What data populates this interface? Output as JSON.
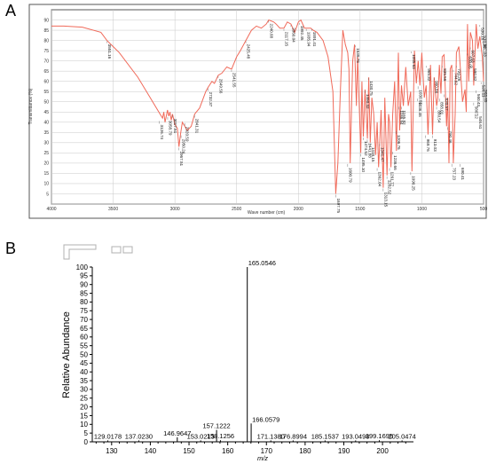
{
  "panels": {
    "a": "A",
    "b": "B"
  },
  "chart_data": [
    {
      "type": "line",
      "panel": "A",
      "xlabel": "Wave number (cm)",
      "ylabel": "Transmittance (%)",
      "xlim": [
        4000,
        500
      ],
      "ylim": [
        0,
        95
      ],
      "x_ticks": [
        4000,
        3500,
        3000,
        2500,
        2000,
        1500,
        1000,
        500
      ],
      "y_ticks": [
        0,
        5,
        10,
        15,
        20,
        25,
        30,
        35,
        40,
        45,
        50,
        55,
        60,
        65,
        70,
        75,
        80,
        85,
        90
      ],
      "color": "#f06a5a",
      "series": [
        {
          "x": [
            4000,
            3900,
            3750,
            3600,
            3551,
            3450,
            3300,
            3200,
            3120,
            3100,
            3090,
            3080,
            3060,
            3050,
            3040,
            3030,
            3020,
            3000,
            2980,
            2967,
            2955,
            2940,
            2900,
            2868,
            2840,
            2800,
            2750,
            2732,
            2700,
            2680,
            2649,
            2620,
            2580,
            2541,
            2500,
            2470,
            2425,
            2380,
            2340,
            2300,
            2260,
            2240,
            2200,
            2180,
            2150,
            2117,
            2090,
            2060,
            2030,
            2000,
            1980,
            1950,
            1900,
            1880,
            1850,
            1800,
            1760,
            1720,
            1697,
            1680,
            1660,
            1640,
            1620,
            1600,
            1590,
            1580,
            1560,
            1545,
            1530,
            1520,
            1495,
            1485,
            1474,
            1460,
            1441,
            1430,
            1418,
            1405,
            1390,
            1375,
            1362,
            1350,
            1341,
            1330,
            1313,
            1300,
            1282,
            1270,
            1261,
            1250,
            1236,
            1220,
            1206,
            1190,
            1180,
            1165,
            1150,
            1130,
            1110,
            1090,
            1080,
            1060,
            1045,
            1030,
            1015,
            1000,
            980,
            965,
            950,
            930,
            913,
            900,
            880,
            870,
            858,
            845,
            835,
            820,
            800,
            790,
            780,
            770,
            757,
            745,
            730,
            720,
            700,
            690,
            670,
            650,
            640,
            630,
            620,
            607,
            590,
            580,
            560,
            546,
            530,
            510,
            500
          ],
          "y": [
            87,
            87,
            86.5,
            84,
            80,
            74,
            62,
            52,
            44,
            42,
            45,
            40,
            46,
            43,
            45,
            41,
            44,
            39,
            37,
            28,
            34,
            40,
            36,
            38,
            44,
            47,
            55,
            57,
            60,
            59,
            63,
            64,
            67,
            66,
            72,
            75,
            80,
            85,
            87,
            86,
            88,
            90,
            89,
            88,
            86,
            86,
            89,
            88,
            84,
            89,
            90,
            86,
            86,
            85,
            84,
            80,
            72,
            55,
            5,
            20,
            55,
            85,
            78,
            74,
            66,
            20,
            70,
            78,
            48,
            72,
            25,
            60,
            33,
            56,
            32,
            62,
            30,
            52,
            44,
            24,
            40,
            18,
            30,
            46,
            8,
            52,
            14,
            44,
            40,
            18,
            44,
            60,
            26,
            74,
            36,
            58,
            48,
            67,
            48,
            55,
            16,
            75,
            59,
            70,
            58,
            74,
            52,
            58,
            34,
            68,
            34,
            62,
            48,
            52,
            68,
            54,
            72,
            73,
            38,
            52,
            20,
            66,
            68,
            20,
            44,
            74,
            77,
            68,
            50,
            56,
            45,
            88,
            60,
            84,
            80,
            58,
            88,
            76,
            82,
            72,
            60
          ]
        }
      ],
      "peak_labels": [
        {
          "x": 3551.16,
          "y": 80,
          "label": "3551.16"
        },
        {
          "x": 3126.74,
          "y": 41,
          "label": "3126.74"
        },
        {
          "x": 3058.79,
          "y": 43,
          "label": "3058.79"
        },
        {
          "x": 3017.51,
          "y": 44,
          "label": "3017.51"
        },
        {
          "x": 2967.51,
          "y": 28,
          "label": "2967.51"
        },
        {
          "x": 2950.24,
          "y": 34,
          "label": "2950.24"
        },
        {
          "x": 2920.59,
          "y": 40,
          "label": "2920.59"
        },
        {
          "x": 2841.31,
          "y": 44,
          "label": "2841.31"
        },
        {
          "x": 2732.37,
          "y": 57,
          "label": "2732.37"
        },
        {
          "x": 2649.56,
          "y": 63,
          "label": "2649.56"
        },
        {
          "x": 2541.55,
          "y": 66,
          "label": "2541.55"
        },
        {
          "x": 2425.48,
          "y": 80,
          "label": "2425.48"
        },
        {
          "x": 2240.68,
          "y": 90,
          "label": "2240.68"
        },
        {
          "x": 2117.15,
          "y": 86,
          "label": "2117.15"
        },
        {
          "x": 2060.04,
          "y": 88,
          "label": "2060.04"
        },
        {
          "x": 1992.45,
          "y": 89,
          "label": "1992.45"
        },
        {
          "x": 1935.94,
          "y": 86,
          "label": "1935.94"
        },
        {
          "x": 1891.41,
          "y": 86,
          "label": "1891.41"
        },
        {
          "x": 1697.75,
          "y": 5,
          "label": "1697.75"
        },
        {
          "x": 1600.79,
          "y": 20,
          "label": "1600.79"
        },
        {
          "x": 1538.76,
          "y": 78,
          "label": "1538.76"
        },
        {
          "x": 1495.1,
          "y": 25,
          "label": "1495.10"
        },
        {
          "x": 1474.52,
          "y": 33,
          "label": "1474.52"
        },
        {
          "x": 1460.32,
          "y": 56,
          "label": "1460.32"
        },
        {
          "x": 1441.88,
          "y": 32,
          "label": "1441.88"
        },
        {
          "x": 1430.75,
          "y": 62,
          "label": "1430.75"
        },
        {
          "x": 1418.15,
          "y": 30,
          "label": "1418.15"
        },
        {
          "x": 1362.04,
          "y": 18,
          "label": "1362.04"
        },
        {
          "x": 1341.47,
          "y": 30,
          "label": "1341.47"
        },
        {
          "x": 1313.15,
          "y": 8,
          "label": "1313.15"
        },
        {
          "x": 1282.52,
          "y": 14,
          "label": "1282.52"
        },
        {
          "x": 1261.77,
          "y": 18,
          "label": "1261.77"
        },
        {
          "x": 1236.66,
          "y": 26,
          "label": "1236.66"
        },
        {
          "x": 1206.76,
          "y": 36,
          "label": "1206.76"
        },
        {
          "x": 1186.54,
          "y": 48,
          "label": "1186.54"
        },
        {
          "x": 1165.82,
          "y": 48,
          "label": "1165.82"
        },
        {
          "x": 1090.25,
          "y": 16,
          "label": "1090.25"
        },
        {
          "x": 1085.63,
          "y": 75,
          "label": "1085.63"
        },
        {
          "x": 1036.46,
          "y": 52,
          "label": "1036.46"
        },
        {
          "x": 1030.66,
          "y": 58,
          "label": "1030.66"
        },
        {
          "x": 969.76,
          "y": 34,
          "label": "969.76"
        },
        {
          "x": 965.32,
          "y": 68,
          "label": "965.32"
        },
        {
          "x": 913.03,
          "y": 34,
          "label": "913.03"
        },
        {
          "x": 900.86,
          "y": 62,
          "label": "900.86"
        },
        {
          "x": 880.54,
          "y": 48,
          "label": "880.54"
        },
        {
          "x": 858.01,
          "y": 52,
          "label": "858.01"
        },
        {
          "x": 835.56,
          "y": 68,
          "label": "835.56"
        },
        {
          "x": 820.57,
          "y": 54,
          "label": "820.57"
        },
        {
          "x": 790.46,
          "y": 38,
          "label": "790.46"
        },
        {
          "x": 757.23,
          "y": 20,
          "label": "757.23"
        },
        {
          "x": 744.62,
          "y": 66,
          "label": "744.62"
        },
        {
          "x": 720.26,
          "y": 68,
          "label": "720.26"
        },
        {
          "x": 690.41,
          "y": 20,
          "label": "690.41"
        },
        {
          "x": 630.05,
          "y": 74,
          "label": "630.05"
        },
        {
          "x": 607.63,
          "y": 77,
          "label": "607.63"
        },
        {
          "x": 590.82,
          "y": 68,
          "label": "590.82"
        },
        {
          "x": 580.12,
          "y": 50,
          "label": "580.12"
        },
        {
          "x": 560.43,
          "y": 56,
          "label": "560.43"
        },
        {
          "x": 546.61,
          "y": 45,
          "label": "546.61"
        },
        {
          "x": 530.16,
          "y": 88,
          "label": "530.16"
        },
        {
          "x": 520.11,
          "y": 60,
          "label": "520.11"
        },
        {
          "x": 510.34,
          "y": 84,
          "label": "510.34"
        },
        {
          "x": 507.03,
          "y": 80,
          "label": "507.03"
        },
        {
          "x": 503.65,
          "y": 58,
          "label": "503.65"
        }
      ]
    },
    {
      "type": "bar",
      "panel": "B",
      "xlabel": "m/z",
      "ylabel": "Relative Abundance",
      "xlim": [
        125,
        208
      ],
      "ylim": [
        0,
        100
      ],
      "x_ticks": [
        130,
        140,
        150,
        160,
        170,
        180,
        190,
        200
      ],
      "y_ticks": [
        0,
        5,
        10,
        15,
        20,
        25,
        30,
        35,
        40,
        45,
        50,
        55,
        60,
        65,
        70,
        75,
        80,
        85,
        90,
        95,
        100
      ],
      "peaks": [
        {
          "x": 129.0178,
          "y": 0.8,
          "label": "129.0178"
        },
        {
          "x": 137.023,
          "y": 0.8,
          "label": "137.0230"
        },
        {
          "x": 146.9647,
          "y": 2.6,
          "label": "146.9647"
        },
        {
          "x": 153.0213,
          "y": 0.8,
          "label": "153.0213"
        },
        {
          "x": 157.1222,
          "y": 6.8,
          "label": "157.1222"
        },
        {
          "x": 158.1256,
          "y": 0.9,
          "label": "158.1256"
        },
        {
          "x": 165.0546,
          "y": 100,
          "label": "165.0546"
        },
        {
          "x": 166.0579,
          "y": 10.5,
          "label": "166.0579"
        },
        {
          "x": 171.138,
          "y": 0.8,
          "label": "171.1380"
        },
        {
          "x": 176.8994,
          "y": 0.8,
          "label": "176.8994"
        },
        {
          "x": 185.1537,
          "y": 0.8,
          "label": "185.1537"
        },
        {
          "x": 193.0498,
          "y": 0.8,
          "label": "193.0498"
        },
        {
          "x": 199.1695,
          "y": 0.9,
          "label": "199.1695"
        },
        {
          "x": 205.0474,
          "y": 0.8,
          "label": "205.0474"
        }
      ]
    }
  ]
}
